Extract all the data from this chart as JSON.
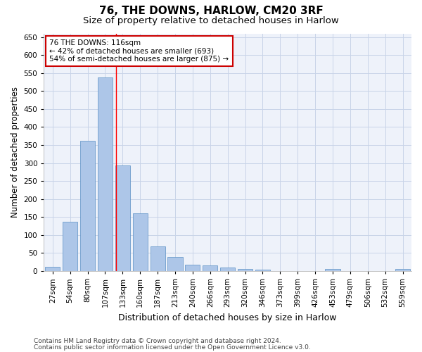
{
  "title1": "76, THE DOWNS, HARLOW, CM20 3RF",
  "title2": "Size of property relative to detached houses in Harlow",
  "xlabel": "Distribution of detached houses by size in Harlow",
  "ylabel": "Number of detached properties",
  "bin_labels": [
    "27sqm",
    "54sqm",
    "80sqm",
    "107sqm",
    "133sqm",
    "160sqm",
    "187sqm",
    "213sqm",
    "240sqm",
    "266sqm",
    "293sqm",
    "320sqm",
    "346sqm",
    "373sqm",
    "399sqm",
    "426sqm",
    "453sqm",
    "479sqm",
    "506sqm",
    "532sqm",
    "559sqm"
  ],
  "bar_values": [
    11,
    137,
    362,
    537,
    293,
    160,
    68,
    40,
    18,
    15,
    10,
    5,
    3,
    0,
    0,
    0,
    5,
    0,
    0,
    0,
    5
  ],
  "bar_color": "#adc6e8",
  "bar_edge_color": "#5a8fc4",
  "grid_color": "#c8d4e8",
  "background_color": "#eef2fa",
  "red_line_x": 3.62,
  "annotation_text": "76 THE DOWNS: 116sqm\n← 42% of detached houses are smaller (693)\n54% of semi-detached houses are larger (875) →",
  "annotation_box_color": "#ffffff",
  "annotation_box_edge": "#cc0000",
  "ylim": [
    0,
    660
  ],
  "yticks": [
    0,
    50,
    100,
    150,
    200,
    250,
    300,
    350,
    400,
    450,
    500,
    550,
    600,
    650
  ],
  "footer1": "Contains HM Land Registry data © Crown copyright and database right 2024.",
  "footer2": "Contains public sector information licensed under the Open Government Licence v3.0.",
  "title1_fontsize": 11,
  "title2_fontsize": 9.5,
  "xlabel_fontsize": 9,
  "ylabel_fontsize": 8.5,
  "tick_fontsize": 7.5,
  "annotation_fontsize": 7.5,
  "footer_fontsize": 6.5
}
